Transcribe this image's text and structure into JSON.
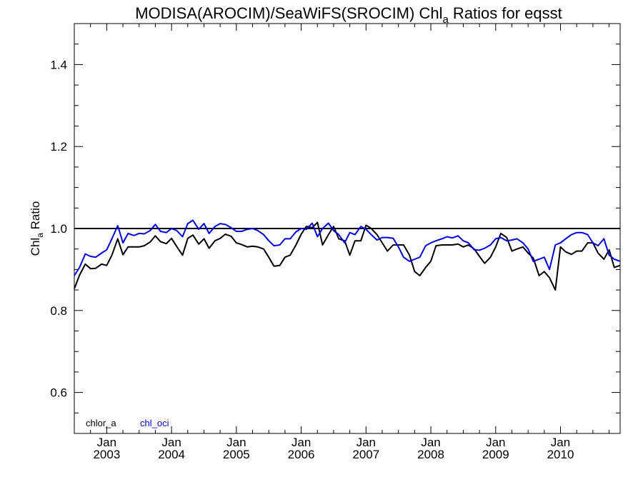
{
  "chart_data": {
    "type": "line",
    "title": {
      "main": "MODISA(AROCIM)/SeaWiFS(SROCIM)  Chl",
      "sub": "a",
      "tail": " Ratios for eqsst"
    },
    "ylabel": {
      "main": "Chl",
      "sub": "a",
      "tail": " Ratio"
    },
    "xlabel": "",
    "xlim": [
      2002.5,
      2010.92
    ],
    "ylim": [
      0.5,
      1.5
    ],
    "yticks": [
      0.6,
      0.8,
      1.0,
      1.2,
      1.4
    ],
    "ytick_labels": [
      "0.6",
      "0.8",
      "1.0",
      "1.2",
      "1.4"
    ],
    "xticks": [
      {
        "t": 2003.0,
        "month": "Jan",
        "year": "2003"
      },
      {
        "t": 2004.0,
        "month": "Jan",
        "year": "2004"
      },
      {
        "t": 2005.0,
        "month": "Jan",
        "year": "2005"
      },
      {
        "t": 2006.0,
        "month": "Jan",
        "year": "2006"
      },
      {
        "t": 2007.0,
        "month": "Jan",
        "year": "2007"
      },
      {
        "t": 2008.0,
        "month": "Jan",
        "year": "2008"
      },
      {
        "t": 2009.0,
        "month": "Jan",
        "year": "2009"
      },
      {
        "t": 2010.0,
        "month": "Jan",
        "year": "2010"
      }
    ],
    "reference_line": 1.0,
    "grid": false,
    "legend_position": "bottom-left",
    "colors": {
      "chlor_a": "#000000",
      "chl_oci": "#0000dd",
      "reference": "#000000"
    },
    "series": [
      {
        "name": "chlor_a",
        "x": [
          2002.5,
          2002.58,
          2002.67,
          2002.75,
          2002.83,
          2002.92,
          2003.0,
          2003.08,
          2003.17,
          2003.25,
          2003.33,
          2003.42,
          2003.5,
          2003.58,
          2003.67,
          2003.75,
          2003.83,
          2003.92,
          2004.0,
          2004.08,
          2004.17,
          2004.25,
          2004.33,
          2004.42,
          2004.5,
          2004.58,
          2004.67,
          2004.75,
          2004.83,
          2004.92,
          2005.0,
          2005.08,
          2005.17,
          2005.25,
          2005.33,
          2005.42,
          2005.5,
          2005.58,
          2005.67,
          2005.75,
          2005.83,
          2005.92,
          2006.0,
          2006.08,
          2006.17,
          2006.25,
          2006.33,
          2006.42,
          2006.5,
          2006.58,
          2006.67,
          2006.75,
          2006.83,
          2006.92,
          2007.0,
          2007.08,
          2007.17,
          2007.25,
          2007.33,
          2007.42,
          2007.5,
          2007.58,
          2007.67,
          2007.75,
          2007.83,
          2007.92,
          2008.0,
          2008.08,
          2008.17,
          2008.25,
          2008.33,
          2008.42,
          2008.5,
          2008.58,
          2008.67,
          2008.75,
          2008.83,
          2008.92,
          2009.0,
          2009.08,
          2009.17,
          2009.25,
          2009.33,
          2009.42,
          2009.5,
          2009.58,
          2009.67,
          2009.75,
          2009.83,
          2009.92,
          2010.0,
          2010.08,
          2010.17,
          2010.25,
          2010.33,
          2010.42,
          2010.5,
          2010.58,
          2010.67,
          2010.75,
          2010.83,
          2010.92
        ],
        "values": [
          0.853,
          0.886,
          0.913,
          0.902,
          0.903,
          0.913,
          0.91,
          0.935,
          0.975,
          0.936,
          0.955,
          0.955,
          0.955,
          0.958,
          0.967,
          0.982,
          0.968,
          0.963,
          0.976,
          0.956,
          0.935,
          0.976,
          0.984,
          0.962,
          0.975,
          0.952,
          0.97,
          0.976,
          0.986,
          0.981,
          0.965,
          0.961,
          0.955,
          0.957,
          0.955,
          0.95,
          0.93,
          0.908,
          0.91,
          0.93,
          0.935,
          0.96,
          0.986,
          1.005,
          1.002,
          1.015,
          0.96,
          0.985,
          1.005,
          0.975,
          0.97,
          0.935,
          0.97,
          0.97,
          1.008,
          1.0,
          0.985,
          0.965,
          0.945,
          0.96,
          0.96,
          0.96,
          0.935,
          0.895,
          0.885,
          0.905,
          0.92,
          0.958,
          0.96,
          0.96,
          0.96,
          0.962,
          0.955,
          0.96,
          0.95,
          0.932,
          0.915,
          0.93,
          0.955,
          0.988,
          0.978,
          0.945,
          0.95,
          0.955,
          0.94,
          0.928,
          0.885,
          0.895,
          0.88,
          0.85,
          0.955,
          0.943,
          0.937,
          0.945,
          0.945,
          0.965,
          0.965,
          0.94,
          0.925,
          0.948,
          0.905,
          0.91
        ]
      },
      {
        "name": "chl_oci",
        "x": [
          2002.5,
          2002.58,
          2002.67,
          2002.75,
          2002.83,
          2002.92,
          2003.0,
          2003.08,
          2003.17,
          2003.25,
          2003.33,
          2003.42,
          2003.5,
          2003.58,
          2003.67,
          2003.75,
          2003.83,
          2003.92,
          2004.0,
          2004.08,
          2004.17,
          2004.25,
          2004.33,
          2004.42,
          2004.5,
          2004.58,
          2004.67,
          2004.75,
          2004.83,
          2004.92,
          2005.0,
          2005.08,
          2005.17,
          2005.25,
          2005.33,
          2005.42,
          2005.5,
          2005.58,
          2005.67,
          2005.75,
          2005.83,
          2005.92,
          2006.0,
          2006.08,
          2006.17,
          2006.25,
          2006.33,
          2006.42,
          2006.5,
          2006.58,
          2006.67,
          2006.75,
          2006.83,
          2006.92,
          2007.0,
          2007.08,
          2007.17,
          2007.25,
          2007.33,
          2007.42,
          2007.5,
          2007.58,
          2007.67,
          2007.75,
          2007.83,
          2007.92,
          2008.0,
          2008.08,
          2008.17,
          2008.25,
          2008.33,
          2008.42,
          2008.5,
          2008.58,
          2008.67,
          2008.75,
          2008.83,
          2008.92,
          2009.0,
          2009.08,
          2009.17,
          2009.25,
          2009.33,
          2009.42,
          2009.5,
          2009.58,
          2009.67,
          2009.75,
          2009.83,
          2009.92,
          2010.0,
          2010.08,
          2010.17,
          2010.25,
          2010.33,
          2010.42,
          2010.5,
          2010.58,
          2010.67,
          2010.75,
          2010.83,
          2010.92
        ],
        "values": [
          0.885,
          0.905,
          0.938,
          0.932,
          0.93,
          0.94,
          0.948,
          0.975,
          1.007,
          0.965,
          0.988,
          0.983,
          0.988,
          0.987,
          0.995,
          1.01,
          0.993,
          0.99,
          1.0,
          0.995,
          0.98,
          1.012,
          1.02,
          0.998,
          1.012,
          0.988,
          1.005,
          1.012,
          1.01,
          1.002,
          0.993,
          0.993,
          0.998,
          1.0,
          0.995,
          0.985,
          0.97,
          0.958,
          0.96,
          0.975,
          0.975,
          0.992,
          1.0,
          0.998,
          1.013,
          0.98,
          1.0,
          1.013,
          0.995,
          0.985,
          0.965,
          0.99,
          0.985,
          1.005,
          0.998,
          0.985,
          0.972,
          0.978,
          0.978,
          0.976,
          0.955,
          0.93,
          0.92,
          0.925,
          0.93,
          0.958,
          0.965,
          0.97,
          0.975,
          0.98,
          0.977,
          0.982,
          0.97,
          0.965,
          0.948,
          0.947,
          0.952,
          0.96,
          0.975,
          0.978,
          0.97,
          0.972,
          0.975,
          0.965,
          0.95,
          0.92,
          0.925,
          0.93,
          0.9,
          0.96,
          0.965,
          0.975,
          0.985,
          0.99,
          0.99,
          0.985,
          0.965,
          0.958,
          0.975,
          0.935,
          0.925,
          0.92
        ]
      }
    ]
  }
}
